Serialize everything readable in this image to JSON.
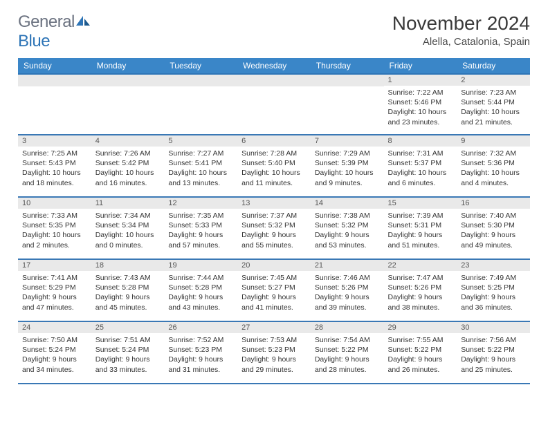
{
  "colors": {
    "header_bg": "#3a86c8",
    "header_border": "#2d74b6",
    "row_border": "#3a78b5",
    "daynum_bg": "#e9e9e9",
    "text": "#333333",
    "logo_gray": "#6b7280",
    "logo_blue": "#2d74b6",
    "background": "#ffffff"
  },
  "typography": {
    "month_title_fontsize": 28,
    "location_fontsize": 15,
    "weekday_fontsize": 12,
    "daynum_fontsize": 11,
    "body_fontsize": 10.5
  },
  "logo": {
    "text1": "General",
    "text2": "Blue"
  },
  "title": "November 2024",
  "location": "Alella, Catalonia, Spain",
  "weekdays": [
    "Sunday",
    "Monday",
    "Tuesday",
    "Wednesday",
    "Thursday",
    "Friday",
    "Saturday"
  ],
  "grid": {
    "rows": 5,
    "cols": 7
  },
  "days": [
    [
      null,
      null,
      null,
      null,
      null,
      {
        "n": "1",
        "sunrise": "7:22 AM",
        "sunset": "5:46 PM",
        "daylight": "10 hours and 23 minutes."
      },
      {
        "n": "2",
        "sunrise": "7:23 AM",
        "sunset": "5:44 PM",
        "daylight": "10 hours and 21 minutes."
      }
    ],
    [
      {
        "n": "3",
        "sunrise": "7:25 AM",
        "sunset": "5:43 PM",
        "daylight": "10 hours and 18 minutes."
      },
      {
        "n": "4",
        "sunrise": "7:26 AM",
        "sunset": "5:42 PM",
        "daylight": "10 hours and 16 minutes."
      },
      {
        "n": "5",
        "sunrise": "7:27 AM",
        "sunset": "5:41 PM",
        "daylight": "10 hours and 13 minutes."
      },
      {
        "n": "6",
        "sunrise": "7:28 AM",
        "sunset": "5:40 PM",
        "daylight": "10 hours and 11 minutes."
      },
      {
        "n": "7",
        "sunrise": "7:29 AM",
        "sunset": "5:39 PM",
        "daylight": "10 hours and 9 minutes."
      },
      {
        "n": "8",
        "sunrise": "7:31 AM",
        "sunset": "5:37 PM",
        "daylight": "10 hours and 6 minutes."
      },
      {
        "n": "9",
        "sunrise": "7:32 AM",
        "sunset": "5:36 PM",
        "daylight": "10 hours and 4 minutes."
      }
    ],
    [
      {
        "n": "10",
        "sunrise": "7:33 AM",
        "sunset": "5:35 PM",
        "daylight": "10 hours and 2 minutes."
      },
      {
        "n": "11",
        "sunrise": "7:34 AM",
        "sunset": "5:34 PM",
        "daylight": "10 hours and 0 minutes."
      },
      {
        "n": "12",
        "sunrise": "7:35 AM",
        "sunset": "5:33 PM",
        "daylight": "9 hours and 57 minutes."
      },
      {
        "n": "13",
        "sunrise": "7:37 AM",
        "sunset": "5:32 PM",
        "daylight": "9 hours and 55 minutes."
      },
      {
        "n": "14",
        "sunrise": "7:38 AM",
        "sunset": "5:32 PM",
        "daylight": "9 hours and 53 minutes."
      },
      {
        "n": "15",
        "sunrise": "7:39 AM",
        "sunset": "5:31 PM",
        "daylight": "9 hours and 51 minutes."
      },
      {
        "n": "16",
        "sunrise": "7:40 AM",
        "sunset": "5:30 PM",
        "daylight": "9 hours and 49 minutes."
      }
    ],
    [
      {
        "n": "17",
        "sunrise": "7:41 AM",
        "sunset": "5:29 PM",
        "daylight": "9 hours and 47 minutes."
      },
      {
        "n": "18",
        "sunrise": "7:43 AM",
        "sunset": "5:28 PM",
        "daylight": "9 hours and 45 minutes."
      },
      {
        "n": "19",
        "sunrise": "7:44 AM",
        "sunset": "5:28 PM",
        "daylight": "9 hours and 43 minutes."
      },
      {
        "n": "20",
        "sunrise": "7:45 AM",
        "sunset": "5:27 PM",
        "daylight": "9 hours and 41 minutes."
      },
      {
        "n": "21",
        "sunrise": "7:46 AM",
        "sunset": "5:26 PM",
        "daylight": "9 hours and 39 minutes."
      },
      {
        "n": "22",
        "sunrise": "7:47 AM",
        "sunset": "5:26 PM",
        "daylight": "9 hours and 38 minutes."
      },
      {
        "n": "23",
        "sunrise": "7:49 AM",
        "sunset": "5:25 PM",
        "daylight": "9 hours and 36 minutes."
      }
    ],
    [
      {
        "n": "24",
        "sunrise": "7:50 AM",
        "sunset": "5:24 PM",
        "daylight": "9 hours and 34 minutes."
      },
      {
        "n": "25",
        "sunrise": "7:51 AM",
        "sunset": "5:24 PM",
        "daylight": "9 hours and 33 minutes."
      },
      {
        "n": "26",
        "sunrise": "7:52 AM",
        "sunset": "5:23 PM",
        "daylight": "9 hours and 31 minutes."
      },
      {
        "n": "27",
        "sunrise": "7:53 AM",
        "sunset": "5:23 PM",
        "daylight": "9 hours and 29 minutes."
      },
      {
        "n": "28",
        "sunrise": "7:54 AM",
        "sunset": "5:22 PM",
        "daylight": "9 hours and 28 minutes."
      },
      {
        "n": "29",
        "sunrise": "7:55 AM",
        "sunset": "5:22 PM",
        "daylight": "9 hours and 26 minutes."
      },
      {
        "n": "30",
        "sunrise": "7:56 AM",
        "sunset": "5:22 PM",
        "daylight": "9 hours and 25 minutes."
      }
    ]
  ],
  "labels": {
    "sunrise": "Sunrise: ",
    "sunset": "Sunset: ",
    "daylight": "Daylight: "
  }
}
